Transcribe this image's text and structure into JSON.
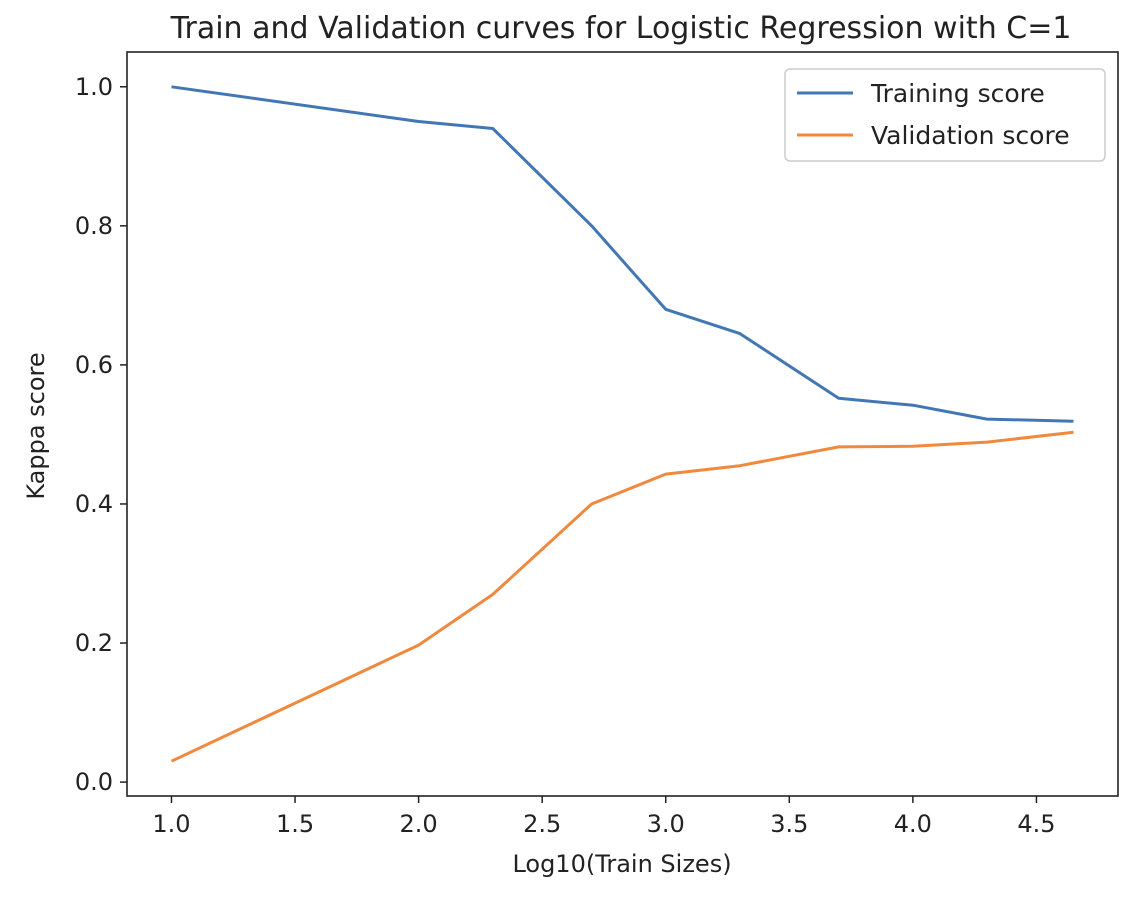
{
  "chart_data": {
    "type": "line",
    "title": "Train and Validation curves for Logistic Regression with C=1",
    "xlabel": "Log10(Train Sizes)",
    "ylabel": "Kappa score",
    "xlim": [
      0.82,
      4.83
    ],
    "ylim": [
      -0.02,
      1.05
    ],
    "xticks": [
      1.0,
      1.5,
      2.0,
      2.5,
      3.0,
      3.5,
      4.0,
      4.5
    ],
    "yticks": [
      0.0,
      0.2,
      0.4,
      0.6,
      0.8,
      1.0
    ],
    "xtick_labels": [
      "1.0",
      "1.5",
      "2.0",
      "2.5",
      "3.0",
      "3.5",
      "4.0",
      "4.5"
    ],
    "ytick_labels": [
      "0.0",
      "0.2",
      "0.4",
      "0.6",
      "0.8",
      "1.0"
    ],
    "grid": false,
    "legend_position": "top-right",
    "x": [
      1.0,
      2.0,
      2.3,
      2.7,
      3.0,
      3.3,
      3.7,
      4.0,
      4.3,
      4.65
    ],
    "series": [
      {
        "name": "Training score",
        "color": "#4277b4",
        "values": [
          1.0,
          0.95,
          0.94,
          0.8,
          0.68,
          0.645,
          0.552,
          0.542,
          0.522,
          0.519
        ]
      },
      {
        "name": "Validation score",
        "color": "#f0893e",
        "values": [
          0.03,
          0.197,
          0.27,
          0.4,
          0.443,
          0.455,
          0.482,
          0.483,
          0.489,
          0.503
        ]
      }
    ]
  }
}
